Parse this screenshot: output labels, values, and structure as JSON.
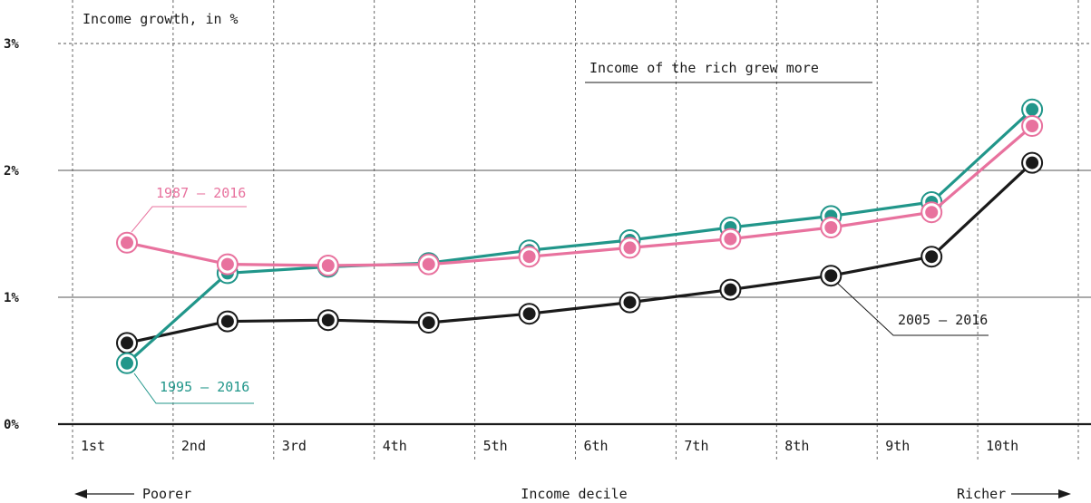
{
  "chart_data": {
    "type": "line",
    "title": "Income growth, in %",
    "xlabel": "Income decile",
    "ylabel": "",
    "categories": [
      "1st",
      "2nd",
      "3rd",
      "4th",
      "5th",
      "6th",
      "7th",
      "8th",
      "9th",
      "10th"
    ],
    "y_ticks": [
      "0%",
      "1%",
      "2%",
      "3%"
    ],
    "ylim": [
      0,
      3
    ],
    "grid": true,
    "series": [
      {
        "name": "1987 – 2016",
        "color": "#e8729e",
        "values": [
          1.43,
          1.26,
          1.25,
          1.26,
          1.32,
          1.39,
          1.46,
          1.55,
          1.67,
          2.35
        ]
      },
      {
        "name": "1995 – 2016",
        "color": "#21968a",
        "values": [
          0.48,
          1.19,
          1.24,
          1.27,
          1.37,
          1.45,
          1.55,
          1.64,
          1.75,
          2.48
        ]
      },
      {
        "name": "2005 – 2016",
        "color": "#1a1a1a",
        "values": [
          0.64,
          0.81,
          0.82,
          0.8,
          0.87,
          0.96,
          1.06,
          1.17,
          1.32,
          2.06
        ]
      }
    ],
    "annotation": "Income of the rich grew more",
    "left_label": "Poorer",
    "right_label": "Richer"
  }
}
